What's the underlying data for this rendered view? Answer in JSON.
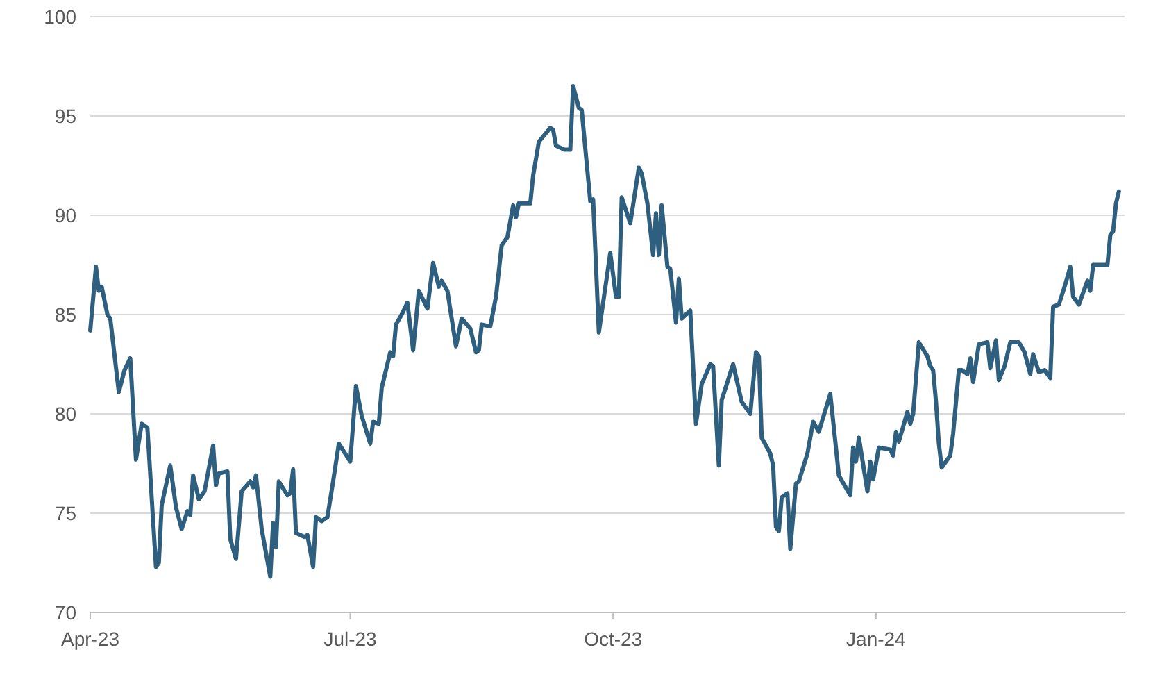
{
  "chart_data": {
    "type": "line",
    "x": [
      "2023-04-01",
      "2023-04-03",
      "2023-04-04",
      "2023-04-05",
      "2023-04-07",
      "2023-04-08",
      "2023-04-11",
      "2023-04-13",
      "2023-04-15",
      "2023-04-17",
      "2023-04-18",
      "2023-04-19",
      "2023-04-21",
      "2023-04-24",
      "2023-04-25",
      "2023-04-26",
      "2023-04-29",
      "2023-05-01",
      "2023-05-03",
      "2023-05-05",
      "2023-05-06",
      "2023-05-07",
      "2023-05-09",
      "2023-05-11",
      "2023-05-14",
      "2023-05-15",
      "2023-05-16",
      "2023-05-19",
      "2023-05-20",
      "2023-05-22",
      "2023-05-24",
      "2023-05-27",
      "2023-05-28",
      "2023-05-29",
      "2023-05-31",
      "2023-06-03",
      "2023-06-04",
      "2023-06-05",
      "2023-06-06",
      "2023-06-09",
      "2023-06-10",
      "2023-06-11",
      "2023-06-12",
      "2023-06-15",
      "2023-06-16",
      "2023-06-18",
      "2023-06-19",
      "2023-06-21",
      "2023-06-23",
      "2023-06-25",
      "2023-06-27",
      "2023-07-01",
      "2023-07-03",
      "2023-07-05",
      "2023-07-08",
      "2023-07-09",
      "2023-07-11",
      "2023-07-12",
      "2023-07-15",
      "2023-07-16",
      "2023-07-17",
      "2023-07-19",
      "2023-07-21",
      "2023-07-23",
      "2023-07-25",
      "2023-07-28",
      "2023-07-30",
      "2023-08-01",
      "2023-08-02",
      "2023-08-04",
      "2023-08-07",
      "2023-08-09",
      "2023-08-12",
      "2023-08-14",
      "2023-08-15",
      "2023-08-16",
      "2023-08-19",
      "2023-08-21",
      "2023-08-23",
      "2023-08-25",
      "2023-08-27",
      "2023-08-28",
      "2023-08-29",
      "2023-09-02",
      "2023-09-03",
      "2023-09-05",
      "2023-09-09",
      "2023-09-10",
      "2023-09-11",
      "2023-09-14",
      "2023-09-16",
      "2023-09-17",
      "2023-09-19",
      "2023-09-20",
      "2023-09-23",
      "2023-09-24",
      "2023-09-26",
      "2023-09-30",
      "2023-10-02",
      "2023-10-03",
      "2023-10-04",
      "2023-10-07",
      "2023-10-10",
      "2023-10-11",
      "2023-10-13",
      "2023-10-15",
      "2023-10-16",
      "2023-10-17",
      "2023-10-18",
      "2023-10-20",
      "2023-10-21",
      "2023-10-23",
      "2023-10-24",
      "2023-10-25",
      "2023-10-28",
      "2023-10-30",
      "2023-11-01",
      "2023-11-04",
      "2023-11-05",
      "2023-11-07",
      "2023-11-08",
      "2023-11-12",
      "2023-11-15",
      "2023-11-18",
      "2023-11-20",
      "2023-11-21",
      "2023-11-22",
      "2023-11-25",
      "2023-11-26",
      "2023-11-27",
      "2023-11-28",
      "2023-11-29",
      "2023-12-01",
      "2023-12-02",
      "2023-12-04",
      "2023-12-05",
      "2023-12-08",
      "2023-12-10",
      "2023-12-12",
      "2023-12-16",
      "2023-12-19",
      "2023-12-23",
      "2023-12-24",
      "2023-12-25",
      "2023-12-26",
      "2023-12-29",
      "2023-12-30",
      "2023-12-31",
      "2024-01-02",
      "2024-01-06",
      "2024-01-07",
      "2024-01-08",
      "2024-01-09",
      "2024-01-12",
      "2024-01-13",
      "2024-01-14",
      "2024-01-16",
      "2024-01-19",
      "2024-01-20",
      "2024-01-21",
      "2024-01-22",
      "2024-01-23",
      "2024-01-24",
      "2024-01-27",
      "2024-01-28",
      "2024-01-30",
      "2024-01-31",
      "2024-02-02",
      "2024-02-03",
      "2024-02-04",
      "2024-02-06",
      "2024-02-09",
      "2024-02-10",
      "2024-02-12",
      "2024-02-13",
      "2024-02-15",
      "2024-02-17",
      "2024-02-20",
      "2024-02-22",
      "2024-02-24",
      "2024-02-25",
      "2024-02-27",
      "2024-02-29",
      "2024-03-02",
      "2024-03-03",
      "2024-03-05",
      "2024-03-07",
      "2024-03-09",
      "2024-03-10",
      "2024-03-12",
      "2024-03-15",
      "2024-03-16",
      "2024-03-17",
      "2024-03-22",
      "2024-03-23",
      "2024-03-24",
      "2024-03-25",
      "2024-03-26"
    ],
    "series": [
      {
        "color": "#2e5f7f",
        "values": [
          84.2,
          87.4,
          86.2,
          86.4,
          85.0,
          84.8,
          81.1,
          82.2,
          82.8,
          77.7,
          78.6,
          79.5,
          79.3,
          72.3,
          72.5,
          75.4,
          77.4,
          75.3,
          74.2,
          75.1,
          74.9,
          76.9,
          75.7,
          76.1,
          78.4,
          76.4,
          77.0,
          77.1,
          73.7,
          72.7,
          76.1,
          76.6,
          76.3,
          76.9,
          74.2,
          71.8,
          74.5,
          73.3,
          76.6,
          75.9,
          76.0,
          77.2,
          74.0,
          73.8,
          73.9,
          72.3,
          74.8,
          74.6,
          74.8,
          76.6,
          78.5,
          77.6,
          81.4,
          79.9,
          78.5,
          79.6,
          79.5,
          81.3,
          83.1,
          82.9,
          84.5,
          85.0,
          85.6,
          83.2,
          86.2,
          85.3,
          87.6,
          86.4,
          86.7,
          86.2,
          83.4,
          84.8,
          84.3,
          83.1,
          83.2,
          84.5,
          84.4,
          85.9,
          88.5,
          88.9,
          90.5,
          89.9,
          90.6,
          90.6,
          92.0,
          93.7,
          94.4,
          94.3,
          93.5,
          93.3,
          93.3,
          96.5,
          95.4,
          95.3,
          90.7,
          90.8,
          84.1,
          88.1,
          85.9,
          85.9,
          90.9,
          89.6,
          92.4,
          92.1,
          90.6,
          88.0,
          90.1,
          88.0,
          90.5,
          87.4,
          87.3,
          84.6,
          86.8,
          84.8,
          85.2,
          79.5,
          81.5,
          82.5,
          82.4,
          77.4,
          80.7,
          82.5,
          80.6,
          80.0,
          83.1,
          82.9,
          78.8,
          78.0,
          77.4,
          74.3,
          74.1,
          75.8,
          76.0,
          73.2,
          76.5,
          76.6,
          78.0,
          79.6,
          79.1,
          81.0,
          76.9,
          75.9,
          78.3,
          77.6,
          78.8,
          76.1,
          77.6,
          76.7,
          78.3,
          78.2,
          77.9,
          79.1,
          78.6,
          80.1,
          79.5,
          80.0,
          83.6,
          82.9,
          82.4,
          82.2,
          80.6,
          78.5,
          77.3,
          77.9,
          79.0,
          82.2,
          82.2,
          82.0,
          82.8,
          81.6,
          83.5,
          83.6,
          82.3,
          83.7,
          81.7,
          82.4,
          83.6,
          83.6,
          83.1,
          82.0,
          83.0,
          82.1,
          82.2,
          81.8,
          85.4,
          85.5,
          86.4,
          87.4,
          85.9,
          85.5,
          86.7,
          86.2,
          87.5,
          87.5,
          89.0,
          89.2,
          90.6,
          91.2
        ]
      }
    ],
    "xlim": [
      "2023-04-01",
      "2024-03-28"
    ],
    "xticks": [
      {
        "value": "2023-04-01",
        "label": "Apr-23"
      },
      {
        "value": "2023-07-01",
        "label": "Jul-23"
      },
      {
        "value": "2023-10-01",
        "label": "Oct-23"
      },
      {
        "value": "2024-01-01",
        "label": "Jan-24"
      }
    ],
    "ylim": [
      70,
      100
    ],
    "yticks": [
      70,
      75,
      80,
      85,
      90,
      95,
      100
    ],
    "grid": "y",
    "marker": "none",
    "line_style": "solid"
  }
}
